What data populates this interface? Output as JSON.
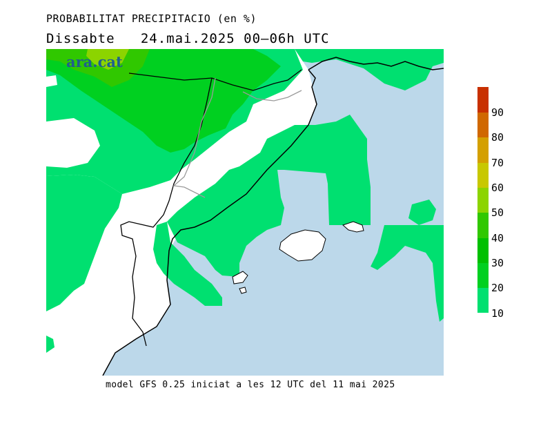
{
  "header": {
    "title": "PROBABILITAT PRECIPITACIO (en %)",
    "day": "Dissabte",
    "date": "24.mai.2025",
    "interval": "00–06h",
    "tz": "UTC"
  },
  "watermark": "ara.cat",
  "footer": "model GFS 0.25 iniciat a les 12 UTC del 11 mai 2025",
  "legend": {
    "levels": [
      {
        "value": "10",
        "color": "#00e070"
      },
      {
        "value": "20",
        "color": "#00d020"
      },
      {
        "value": "30",
        "color": "#00c000"
      },
      {
        "value": "40",
        "color": "#30c800"
      },
      {
        "value": "50",
        "color": "#8cd400"
      },
      {
        "value": "60",
        "color": "#c8c800"
      },
      {
        "value": "70",
        "color": "#d4a000"
      },
      {
        "value": "80",
        "color": "#d06800"
      },
      {
        "value": "90",
        "color": "#c83000"
      },
      {
        "value": "",
        "color": "#c00000"
      }
    ]
  },
  "map_colors": {
    "sea": "#bcd8ea",
    "land_low": "#ffffff",
    "prob_10": "#00e070",
    "prob_20": "#00d020",
    "prob_30": "#00c000",
    "prob_40": "#30c800",
    "prob_50": "#8cd400"
  }
}
